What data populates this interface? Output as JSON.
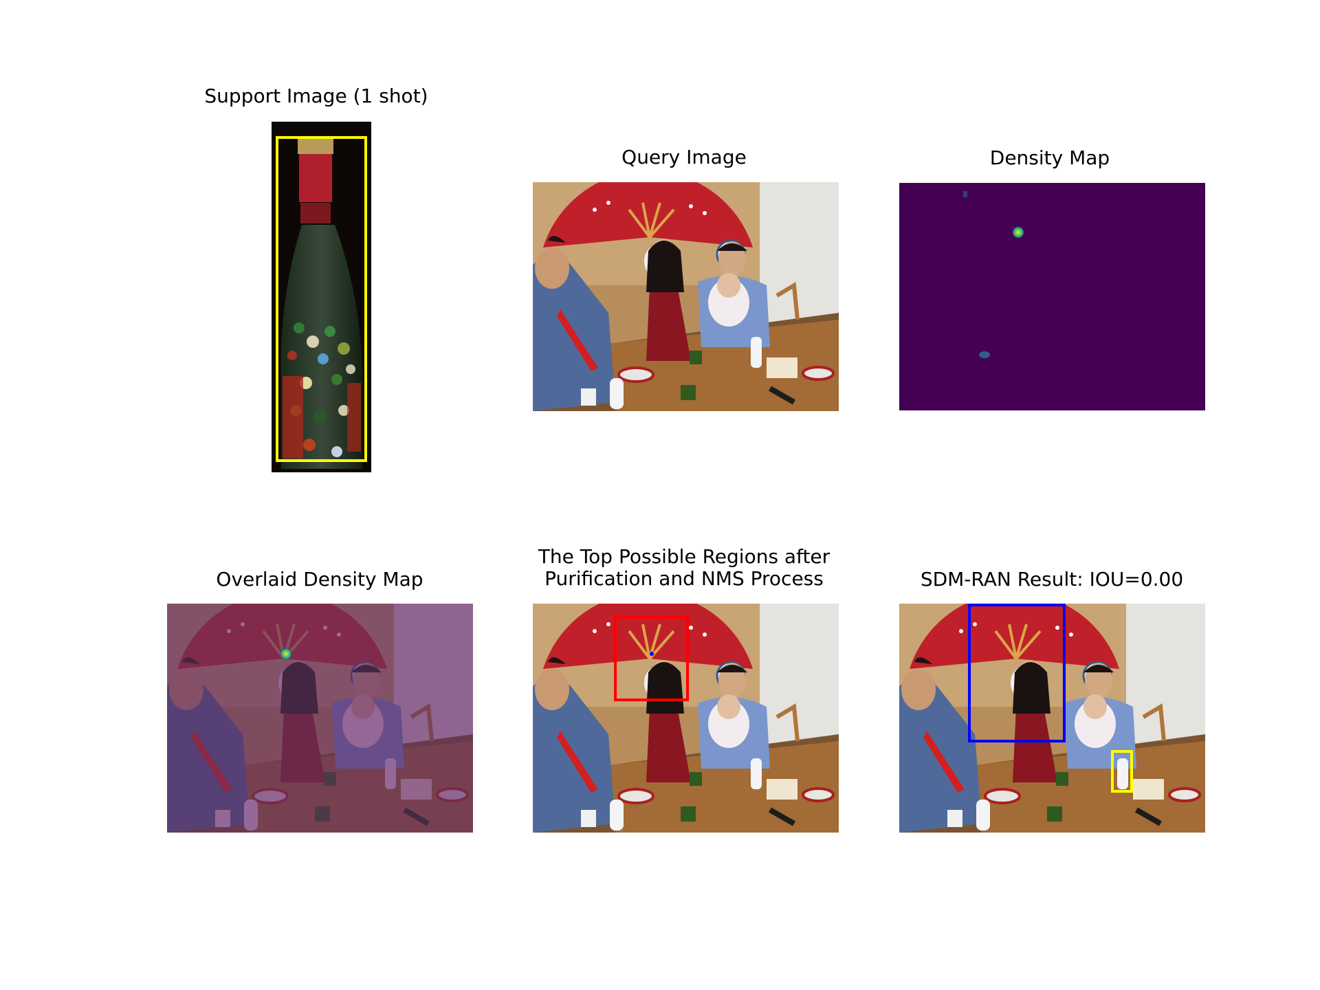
{
  "figure": {
    "support": {
      "title": "Support Image (1 shot)"
    },
    "query": {
      "title": "Query Image"
    },
    "density": {
      "title": "Density Map"
    },
    "overlay": {
      "title": "Overlaid Density Map"
    },
    "regions": {
      "title_line1": "The Top Possible Regions after",
      "title_line2": "Purification and NMS Process"
    },
    "result": {
      "title": "SDM-RAN Result: IOU=0.00"
    }
  },
  "colors": {
    "support_box": "#ffff00",
    "region_box": "#ff0000",
    "prediction_box": "#0000ff",
    "ground_truth_box": "#ffff00",
    "density_background": "#440154",
    "density_peak": "#fde725"
  }
}
